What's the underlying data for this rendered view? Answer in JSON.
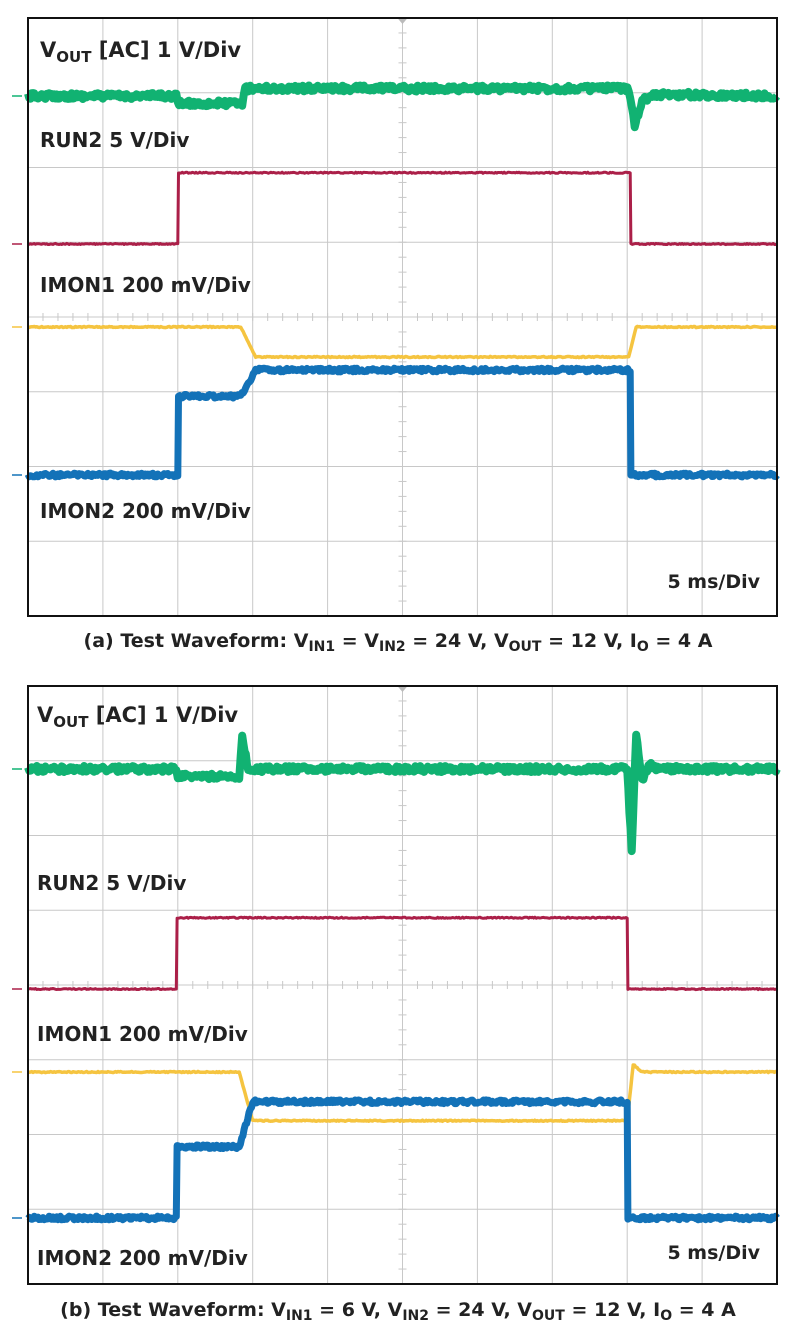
{
  "colors": {
    "vout": "#11b272",
    "run2": "#ab1f48",
    "imon1": "#f5c440",
    "imon2": "#1372b8",
    "grid": "#c8c8c8",
    "frame": "#111111"
  },
  "chart_data": [
    {
      "type": "line",
      "panel": "a",
      "x_unit": "ms",
      "xlim": [
        0,
        50
      ],
      "timebase": "5 ms/Div",
      "grid": true,
      "channels": {
        "vout": {
          "label_main": "V",
          "label_sub": "OUT",
          "label_rest": " [AC] 1 V/Div"
        },
        "run2": {
          "label": "RUN2 5 V/Div"
        },
        "imon1": {
          "label": "IMON1 200 mV/Div"
        },
        "imon2": {
          "label": "IMON2 200 mV/Div"
        }
      },
      "series": [
        {
          "name": "VOUT [AC]",
          "unit": "div",
          "x": [
            0,
            9.9,
            10,
            14.3,
            14.5,
            40.1,
            40.3,
            40.5,
            41,
            42,
            50
          ],
          "y": [
            0,
            0,
            -0.1,
            -0.1,
            0.1,
            0.1,
            -0.1,
            -0.4,
            -0.05,
            0.02,
            0
          ]
        },
        {
          "name": "RUN2",
          "unit": "div",
          "x": [
            0,
            10,
            10.05,
            40.2,
            40.25,
            50
          ],
          "y": [
            0,
            0,
            0.95,
            0.95,
            0,
            0
          ]
        },
        {
          "name": "IMON1",
          "unit": "div",
          "x": [
            0,
            14.2,
            15.2,
            40.1,
            40.6,
            50
          ],
          "y": [
            0,
            0,
            -0.4,
            -0.4,
            0,
            0
          ]
        },
        {
          "name": "IMON2",
          "unit": "div",
          "x": [
            0,
            10,
            10.05,
            14.2,
            15.2,
            40.2,
            40.25,
            50
          ],
          "y": [
            0,
            0,
            1.05,
            1.05,
            1.4,
            1.4,
            0,
            0
          ]
        }
      ],
      "caption": {
        "prefix": "(a) Test Waveform: V",
        "sub1": "IN1",
        "mid1": " = V",
        "sub2": "IN2",
        "mid2": " = 24 V, V",
        "sub3": "OUT",
        "mid3": " = 12 V, I",
        "sub4": "O",
        "suffix": " = 4 A"
      }
    },
    {
      "type": "line",
      "panel": "b",
      "x_unit": "ms",
      "xlim": [
        0,
        50
      ],
      "timebase": "5 ms/Div",
      "grid": true,
      "channels": {
        "vout": {
          "label_main": "V",
          "label_sub": "OUT",
          "label_rest": " [AC] 1 V/Div"
        },
        "run2": {
          "label": "RUN2 5 V/Div"
        },
        "imon1": {
          "label": "IMON1 200 mV/Div"
        },
        "imon2": {
          "label": "IMON2 200 mV/Div"
        }
      },
      "series": [
        {
          "name": "VOUT [AC]",
          "unit": "div",
          "x": [
            0,
            9.9,
            10,
            14.1,
            14.3,
            14.7,
            40.0,
            40.3,
            40.6,
            41.0,
            41.5,
            42.2,
            50
          ],
          "y": [
            0,
            0,
            -0.1,
            -0.1,
            0.45,
            0,
            0,
            -1.1,
            0.45,
            -0.15,
            0.05,
            0,
            0
          ]
        },
        {
          "name": "RUN2",
          "unit": "div",
          "x": [
            0,
            9.9,
            9.95,
            40.0,
            40.05,
            50
          ],
          "y": [
            0,
            0,
            0.95,
            0.95,
            0,
            0
          ]
        },
        {
          "name": "IMON1",
          "unit": "div",
          "x": [
            0,
            14.1,
            15.0,
            40.0,
            40.4,
            41.0,
            50
          ],
          "y": [
            0,
            0,
            -0.65,
            -0.65,
            0.1,
            0,
            0
          ]
        },
        {
          "name": "IMON2",
          "unit": "div",
          "x": [
            0,
            9.9,
            9.95,
            14.1,
            15.0,
            40.0,
            40.05,
            50
          ],
          "y": [
            0,
            0,
            0.95,
            0.95,
            1.55,
            1.55,
            0,
            0
          ]
        }
      ],
      "caption": {
        "prefix": "(b) Test Waveform: V",
        "sub1": "IN1",
        "mid1": " = 6 V, V",
        "sub2": "IN2",
        "mid2": " = 24 V, V",
        "sub3": "OUT",
        "mid3": " = 12 V, I",
        "sub4": "O",
        "suffix": " = 4 A"
      }
    }
  ]
}
